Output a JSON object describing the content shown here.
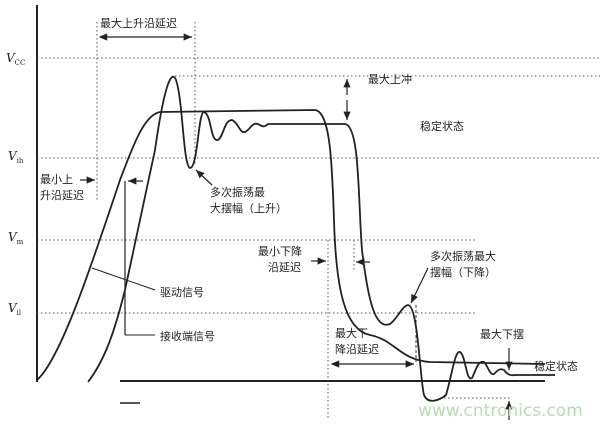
{
  "levels": {
    "vcc": "V",
    "vcc_sub": "CC",
    "vih": "V",
    "vih_sub": "ih",
    "vm": "V",
    "vm_sub": "m",
    "vil": "V",
    "vil_sub": "il"
  },
  "labels": {
    "max_rise_delay": "最大上升沿延迟",
    "max_overshoot": "最大上冲",
    "steady_high": "稳定状态",
    "min_rise_delay_1": "最小上",
    "min_rise_delay_2": "升沿延迟",
    "ringing_rise_1": "多次振荡最",
    "ringing_rise_2": "大摆幅（上升）",
    "min_fall_delay_1": "最小下降",
    "min_fall_delay_2": "沿延迟",
    "ringing_fall_1": "多次振荡最大",
    "ringing_fall_2": "摆幅（下降）",
    "driver_signal": "驱动信号",
    "receiver_signal": "接收端信号",
    "max_fall_delay_1": "最大下",
    "max_fall_delay_2": "降沿延迟",
    "max_undershoot": "最大下摆",
    "steady_low": "稳定状态"
  },
  "watermark": "www.cntronics.com"
}
